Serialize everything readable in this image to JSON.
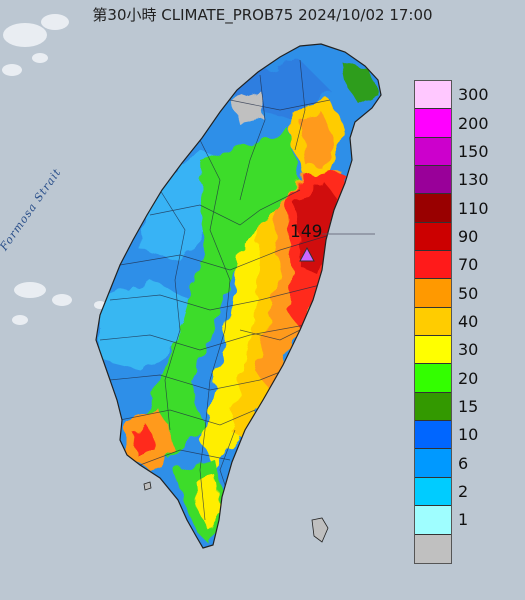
{
  "title": "第30小時  CLIMATE_PROB75 2024/10/02 17:00",
  "strait_label": "Formosa Strait",
  "max_marker": {
    "value": "149"
  },
  "legend": [
    {
      "label": "300",
      "color": "#ffc8ff"
    },
    {
      "label": "200",
      "color": "#ff00ff"
    },
    {
      "label": "150",
      "color": "#cc00cc"
    },
    {
      "label": "130",
      "color": "#990099"
    },
    {
      "label": "110",
      "color": "#990000"
    },
    {
      "label": "90",
      "color": "#cc0000"
    },
    {
      "label": "70",
      "color": "#ff1a1a"
    },
    {
      "label": "50",
      "color": "#ff9900"
    },
    {
      "label": "40",
      "color": "#ffcc00"
    },
    {
      "label": "30",
      "color": "#ffff00"
    },
    {
      "label": "20",
      "color": "#33ff00"
    },
    {
      "label": "15",
      "color": "#339900"
    },
    {
      "label": "10",
      "color": "#0066ff"
    },
    {
      "label": "6",
      "color": "#0099ff"
    },
    {
      "label": "2",
      "color": "#00ccff"
    },
    {
      "label": "1",
      "color": "#9ffeff"
    },
    {
      "label": "",
      "color": "#c0c0c0"
    }
  ],
  "colors": {
    "sea": "#bcc7d2",
    "border": "#222222",
    "marker": "#cc66ff"
  }
}
